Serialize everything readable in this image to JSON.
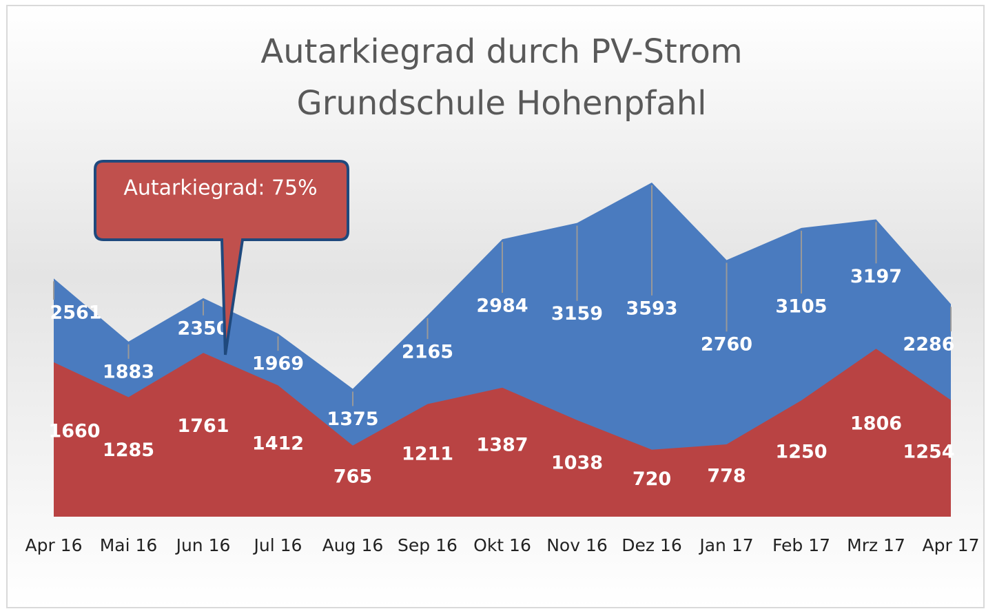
{
  "chart_data": {
    "type": "area",
    "title": [
      "Autarkiegrad durch PV-Strom",
      "Grundschule Hohenpfahl"
    ],
    "categories": [
      "Apr 16",
      "Mai 16",
      "Jun 16",
      "Jul 16",
      "Aug 16",
      "Sep 16",
      "Okt 16",
      "Nov 16",
      "Dez 16",
      "Jan 17",
      "Feb 17",
      "Mrz 17",
      "Apr 17"
    ],
    "series": [
      {
        "color": "#4a7bbf",
        "values": [
          2561,
          1883,
          2350,
          1969,
          1375,
          2165,
          2984,
          3159,
          3593,
          2760,
          3105,
          3197,
          2286
        ]
      },
      {
        "color": "#b94343",
        "values": [
          1660,
          1285,
          1761,
          1412,
          765,
          1211,
          1387,
          1038,
          720,
          778,
          1250,
          1806,
          1254
        ]
      }
    ],
    "annotation": "Autarkiegrad: 75%"
  }
}
